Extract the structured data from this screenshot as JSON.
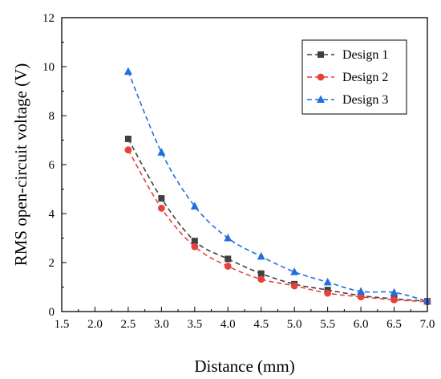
{
  "chart_data": {
    "type": "line",
    "title": "",
    "xlabel": "Distance (mm)",
    "ylabel": "RMS open-circuit voltage (V)",
    "xlim": [
      1.5,
      7.0
    ],
    "ylim": [
      0,
      12
    ],
    "xticks": [
      "1.5",
      "2.0",
      "2.5",
      "3.0",
      "3.5",
      "4.0",
      "4.5",
      "5.0",
      "5.5",
      "6.0",
      "6.5",
      "7.0"
    ],
    "yticks": [
      "0",
      "2",
      "4",
      "6",
      "8",
      "10",
      "12"
    ],
    "grid": false,
    "legend_position": "top-right",
    "x": [
      2.5,
      3.0,
      3.5,
      4.0,
      4.5,
      5.0,
      5.5,
      6.0,
      6.5,
      7.0
    ],
    "series": [
      {
        "name": "Design 1",
        "marker": "square",
        "color": "#404040",
        "values": [
          7.05,
          4.62,
          2.88,
          2.15,
          1.55,
          1.12,
          0.88,
          0.65,
          0.52,
          0.42
        ]
      },
      {
        "name": "Design 2",
        "marker": "circle",
        "color": "#e8413c",
        "values": [
          6.6,
          4.22,
          2.65,
          1.85,
          1.32,
          1.05,
          0.75,
          0.6,
          0.48,
          0.4
        ]
      },
      {
        "name": "Design 3",
        "marker": "triangle",
        "color": "#1f6fdc",
        "values": [
          9.8,
          6.5,
          4.3,
          3.0,
          2.25,
          1.62,
          1.2,
          0.82,
          0.78,
          0.42
        ]
      }
    ]
  }
}
